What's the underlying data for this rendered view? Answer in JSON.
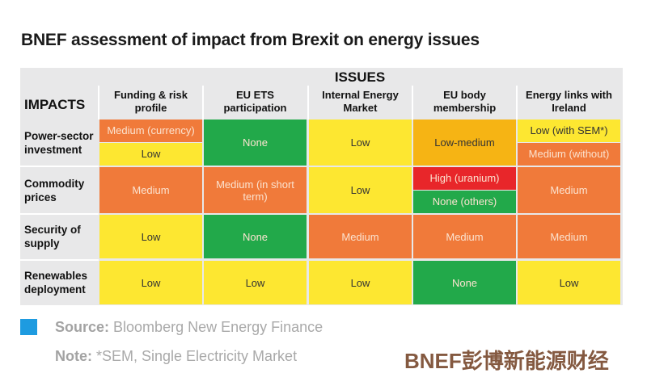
{
  "title": "BNEF assessment of impact from Brexit on energy issues",
  "header": {
    "issues": "ISSUES",
    "impacts": "IMPACTS"
  },
  "columns": [
    "Funding & risk profile",
    "EU ETS participation",
    "Internal Energy Market",
    "EU body membership",
    "Energy links with Ireland"
  ],
  "colors": {
    "none": "#22a94a",
    "low": "#fde731",
    "low-medium": "#f6b414",
    "medium": "#f07a3a",
    "high": "#e8262a",
    "source_square": "#1e9be0"
  },
  "rows": [
    {
      "label": "Power-sector investment",
      "cells": [
        [
          {
            "text": "Medium (currency)",
            "level": "medium"
          },
          {
            "text": "Low",
            "level": "low"
          }
        ],
        [
          {
            "text": "None",
            "level": "none"
          }
        ],
        [
          {
            "text": "Low",
            "level": "low"
          }
        ],
        [
          {
            "text": "Low-medium",
            "level": "low-medium"
          }
        ],
        [
          {
            "text": "Low (with SEM*)",
            "level": "low"
          },
          {
            "text": "Medium (without)",
            "level": "medium"
          }
        ]
      ]
    },
    {
      "label": "Commodity prices",
      "cells": [
        [
          {
            "text": "Medium",
            "level": "medium"
          }
        ],
        [
          {
            "text": "Medium (in short term)",
            "level": "medium"
          }
        ],
        [
          {
            "text": "Low",
            "level": "low"
          }
        ],
        [
          {
            "text": "High (uranium)",
            "level": "high"
          },
          {
            "text": "None (others)",
            "level": "none"
          }
        ],
        [
          {
            "text": "Medium",
            "level": "medium"
          }
        ]
      ]
    },
    {
      "label": "Security of supply",
      "cells": [
        [
          {
            "text": "Low",
            "level": "low"
          }
        ],
        [
          {
            "text": "None",
            "level": "none"
          }
        ],
        [
          {
            "text": "Medium",
            "level": "medium"
          }
        ],
        [
          {
            "text": "Medium",
            "level": "medium"
          }
        ],
        [
          {
            "text": "Medium",
            "level": "medium"
          }
        ]
      ]
    },
    {
      "label": "Renewables deployment",
      "cells": [
        [
          {
            "text": "Low",
            "level": "low"
          }
        ],
        [
          {
            "text": "Low",
            "level": "low"
          }
        ],
        [
          {
            "text": "Low",
            "level": "low"
          }
        ],
        [
          {
            "text": "None",
            "level": "none"
          }
        ],
        [
          {
            "text": "Low",
            "level": "low"
          }
        ]
      ]
    }
  ],
  "watermark": "BNEF彭博新能源财经",
  "footer": {
    "source_label": "Source:",
    "source_text": " Bloomberg New Energy Finance",
    "note_label": "Note:",
    "note_text": " *SEM, Single Electricity Market"
  },
  "chart_data": {
    "type": "table",
    "title": "BNEF assessment of impact from Brexit on energy issues",
    "column_header": "ISSUES",
    "row_header": "IMPACTS"
  }
}
